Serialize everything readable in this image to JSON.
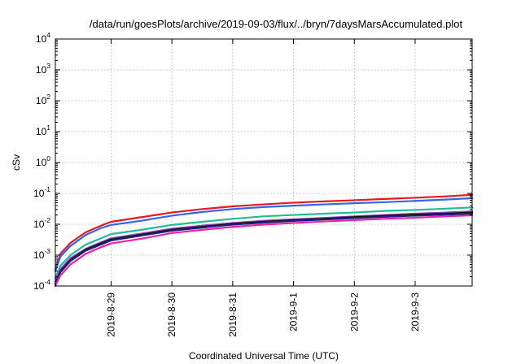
{
  "chart_data": {
    "type": "line",
    "title": "/data/run/goesPlots/archive/2019-09-03/flux/../bryn/7daysMarsAccumulated.plot",
    "xlabel": "Coordinated Universal Time (UTC)",
    "ylabel": "cSv",
    "y_scale": "log",
    "ylim": [
      0.0001,
      10000
    ],
    "xlim": [
      "2019-08-28T02:00",
      "2019-09-03T22:30"
    ],
    "grid": true,
    "legend": "none",
    "y_ticks": [
      {
        "value": 0.0001,
        "base": "10",
        "exp": "-4"
      },
      {
        "value": 0.001,
        "base": "10",
        "exp": "-3"
      },
      {
        "value": 0.01,
        "base": "10",
        "exp": "-2"
      },
      {
        "value": 0.1,
        "base": "10",
        "exp": "-1"
      },
      {
        "value": 1,
        "base": "10",
        "exp": "0"
      },
      {
        "value": 10,
        "base": "10",
        "exp": "1"
      },
      {
        "value": 100,
        "base": "10",
        "exp": "2"
      },
      {
        "value": 1000,
        "base": "10",
        "exp": "3"
      },
      {
        "value": 10000,
        "base": "10",
        "exp": "4"
      }
    ],
    "x_ticks": [
      {
        "value": "2019-08-29T00:00",
        "label": "2019-8-29"
      },
      {
        "value": "2019-08-30T00:00",
        "label": "2019-8-30"
      },
      {
        "value": "2019-08-31T00:00",
        "label": "2019-8-31"
      },
      {
        "value": "2019-09-01T00:00",
        "label": "2019-9-1"
      },
      {
        "value": "2019-09-02T00:00",
        "label": "2019-9-2"
      },
      {
        "value": "2019-09-03T00:00",
        "label": "2019-9-3"
      }
    ],
    "x": [
      "2019-08-28T02:00",
      "2019-08-28T04:00",
      "2019-08-28T08:00",
      "2019-08-28T14:00",
      "2019-08-28T20:00",
      "2019-08-29T00:00",
      "2019-08-29T12:00",
      "2019-08-30T00:00",
      "2019-08-30T12:00",
      "2019-08-31T00:00",
      "2019-08-31T12:00",
      "2019-09-01T00:00",
      "2019-09-01T12:00",
      "2019-09-02T00:00",
      "2019-09-02T12:00",
      "2019-09-03T00:00",
      "2019-09-03T12:00",
      "2019-09-03T22:30"
    ],
    "series": [
      {
        "color": "#e41a1c",
        "values": [
          0.00035,
          0.0011,
          0.0025,
          0.0055,
          0.009,
          0.012,
          0.017,
          0.024,
          0.031,
          0.038,
          0.044,
          0.05,
          0.055,
          0.06,
          0.066,
          0.072,
          0.08,
          0.09
        ]
      },
      {
        "color": "#3366ee",
        "values": [
          0.0003,
          0.0009,
          0.002,
          0.0045,
          0.0075,
          0.0095,
          0.013,
          0.019,
          0.025,
          0.031,
          0.036,
          0.04,
          0.044,
          0.048,
          0.052,
          0.057,
          0.063,
          0.07
        ]
      },
      {
        "color": "#22bb99",
        "values": [
          0.00018,
          0.00045,
          0.001,
          0.0022,
          0.0035,
          0.0048,
          0.0066,
          0.0095,
          0.012,
          0.015,
          0.018,
          0.02,
          0.022,
          0.024,
          0.027,
          0.029,
          0.032,
          0.035
        ]
      },
      {
        "color": "#8e44ad",
        "values": [
          0.00014,
          0.00035,
          0.0008,
          0.0016,
          0.0026,
          0.0035,
          0.005,
          0.0072,
          0.009,
          0.011,
          0.013,
          0.0145,
          0.016,
          0.018,
          0.02,
          0.022,
          0.024,
          0.026
        ]
      },
      {
        "color": "#111111",
        "values": [
          0.00012,
          0.0003,
          0.0007,
          0.0015,
          0.0024,
          0.0032,
          0.0046,
          0.0066,
          0.0083,
          0.0103,
          0.012,
          0.0135,
          0.015,
          0.017,
          0.0185,
          0.0205,
          0.022,
          0.024
        ]
      },
      {
        "color": "#1a237e",
        "values": [
          0.00011,
          0.00028,
          0.00065,
          0.0014,
          0.0022,
          0.003,
          0.0043,
          0.0062,
          0.0078,
          0.0097,
          0.0113,
          0.0128,
          0.0142,
          0.0158,
          0.0173,
          0.019,
          0.0205,
          0.022
        ]
      },
      {
        "color": "#ee22aa",
        "values": [
          0.0001,
          0.00022,
          0.0005,
          0.0011,
          0.0018,
          0.0024,
          0.0034,
          0.0052,
          0.0066,
          0.0082,
          0.0097,
          0.011,
          0.0123,
          0.0136,
          0.015,
          0.0163,
          0.018,
          0.0195
        ]
      }
    ]
  }
}
